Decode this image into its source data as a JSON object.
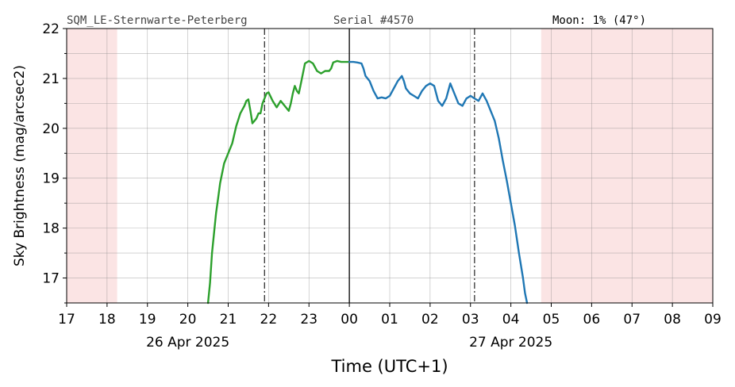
{
  "header": {
    "station": "SQM_LE-Sternwarte-Peterberg",
    "serial": "Serial #4570",
    "moon": "Moon: 1% (47°)"
  },
  "chart_data": {
    "type": "line",
    "title": "",
    "xlabel": "Time (UTC+1)",
    "ylabel": "Sky Brightness (mag/arcsec2)",
    "x_unit": "hours relative to 00:00 on 27 Apr 2025 (UTC+1)",
    "xlim": [
      -7,
      9
    ],
    "ylim": [
      16.5,
      22
    ],
    "y_ticks": [
      17,
      18,
      19,
      20,
      21,
      22
    ],
    "x_tick_labels": [
      "17",
      "18",
      "19",
      "20",
      "21",
      "22",
      "23",
      "00",
      "01",
      "02",
      "03",
      "04",
      "05",
      "06",
      "07",
      "08",
      "09"
    ],
    "date_labels": [
      {
        "text": "26 Apr 2025",
        "x": -4
      },
      {
        "text": "27 Apr 2025",
        "x": 4
      }
    ],
    "grid": true,
    "twilight_shading": [
      {
        "from": -7,
        "to": -5.75,
        "color": "#fbe4e4"
      },
      {
        "from": 4.75,
        "to": 9,
        "color": "#fbe4e4"
      }
    ],
    "vertical_lines": [
      {
        "x": -2.1,
        "style": "dashdot",
        "color": "#333333"
      },
      {
        "x": 0,
        "style": "solid",
        "color": "#000000"
      },
      {
        "x": 3.1,
        "style": "dashdot",
        "color": "#333333"
      }
    ],
    "series": [
      {
        "color": "#2ca02c",
        "x": [
          -3.5,
          -3.45,
          -3.4,
          -3.3,
          -3.25,
          -3.2,
          -3.1,
          -3.0,
          -2.9,
          -2.8,
          -2.7,
          -2.6,
          -2.55,
          -2.5,
          -2.45,
          -2.4,
          -2.35,
          -2.3,
          -2.25,
          -2.2,
          -2.15,
          -2.1,
          -2.05,
          -2.0,
          -1.9,
          -1.8,
          -1.7,
          -1.6,
          -1.5,
          -1.45,
          -1.4,
          -1.35,
          -1.3,
          -1.25,
          -1.2,
          -1.1,
          -1.0,
          -0.9,
          -0.8,
          -0.7,
          -0.6,
          -0.5,
          -0.45,
          -0.4,
          -0.3,
          -0.2,
          -0.1,
          0.0
        ],
        "y": [
          16.5,
          16.9,
          17.5,
          18.3,
          18.6,
          18.9,
          19.3,
          19.5,
          19.7,
          20.05,
          20.3,
          20.45,
          20.55,
          20.58,
          20.35,
          20.1,
          20.15,
          20.2,
          20.3,
          20.3,
          20.5,
          20.6,
          20.7,
          20.72,
          20.55,
          20.42,
          20.55,
          20.45,
          20.35,
          20.5,
          20.7,
          20.85,
          20.75,
          20.7,
          20.9,
          21.3,
          21.35,
          21.3,
          21.15,
          21.1,
          21.15,
          21.15,
          21.2,
          21.32,
          21.35,
          21.33,
          21.33,
          21.33
        ]
      },
      {
        "color": "#1f77b4",
        "x": [
          0.0,
          0.1,
          0.2,
          0.3,
          0.35,
          0.4,
          0.5,
          0.6,
          0.7,
          0.8,
          0.9,
          1.0,
          1.1,
          1.2,
          1.3,
          1.35,
          1.4,
          1.5,
          1.6,
          1.7,
          1.8,
          1.9,
          2.0,
          2.1,
          2.2,
          2.3,
          2.4,
          2.5,
          2.6,
          2.7,
          2.8,
          2.9,
          3.0,
          3.1,
          3.2,
          3.3,
          3.4,
          3.5,
          3.6,
          3.7,
          3.8,
          3.9,
          4.0,
          4.1,
          4.2,
          4.3,
          4.35,
          4.4
        ],
        "y": [
          21.33,
          21.33,
          21.32,
          21.3,
          21.2,
          21.05,
          20.95,
          20.75,
          20.6,
          20.62,
          20.6,
          20.65,
          20.8,
          20.95,
          21.05,
          20.95,
          20.8,
          20.7,
          20.65,
          20.6,
          20.75,
          20.85,
          20.9,
          20.85,
          20.55,
          20.45,
          20.6,
          20.9,
          20.7,
          20.5,
          20.45,
          20.6,
          20.65,
          20.6,
          20.55,
          20.7,
          20.55,
          20.35,
          20.15,
          19.8,
          19.35,
          18.95,
          18.5,
          18.05,
          17.5,
          17.0,
          16.7,
          16.5
        ]
      }
    ]
  }
}
